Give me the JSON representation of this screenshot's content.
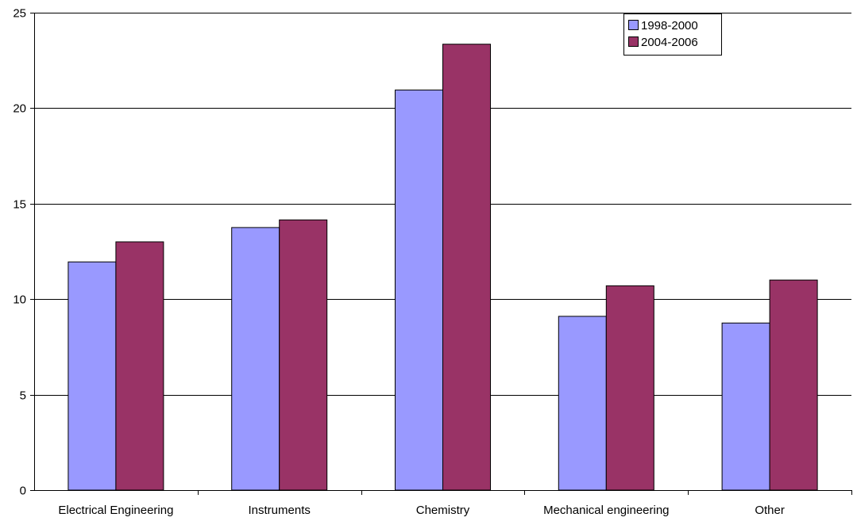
{
  "chart_data": {
    "type": "bar",
    "title": "",
    "xlabel": "",
    "ylabel": "",
    "categories": [
      "Electrical Engineering",
      "Instruments",
      "Chemistry",
      "Mechanical engineering",
      "Other"
    ],
    "series": [
      {
        "name": "1998-2000",
        "values": [
          11.95,
          13.75,
          20.95,
          9.1,
          8.75
        ],
        "color": "#9999ff"
      },
      {
        "name": "2004-2006",
        "values": [
          13.0,
          14.15,
          23.35,
          10.7,
          11.0
        ],
        "color": "#993366"
      }
    ],
    "ylim": [
      0,
      25
    ],
    "yticks": [
      0,
      5,
      10,
      15,
      20,
      25
    ],
    "grid": true,
    "legend_position": "top-right"
  }
}
